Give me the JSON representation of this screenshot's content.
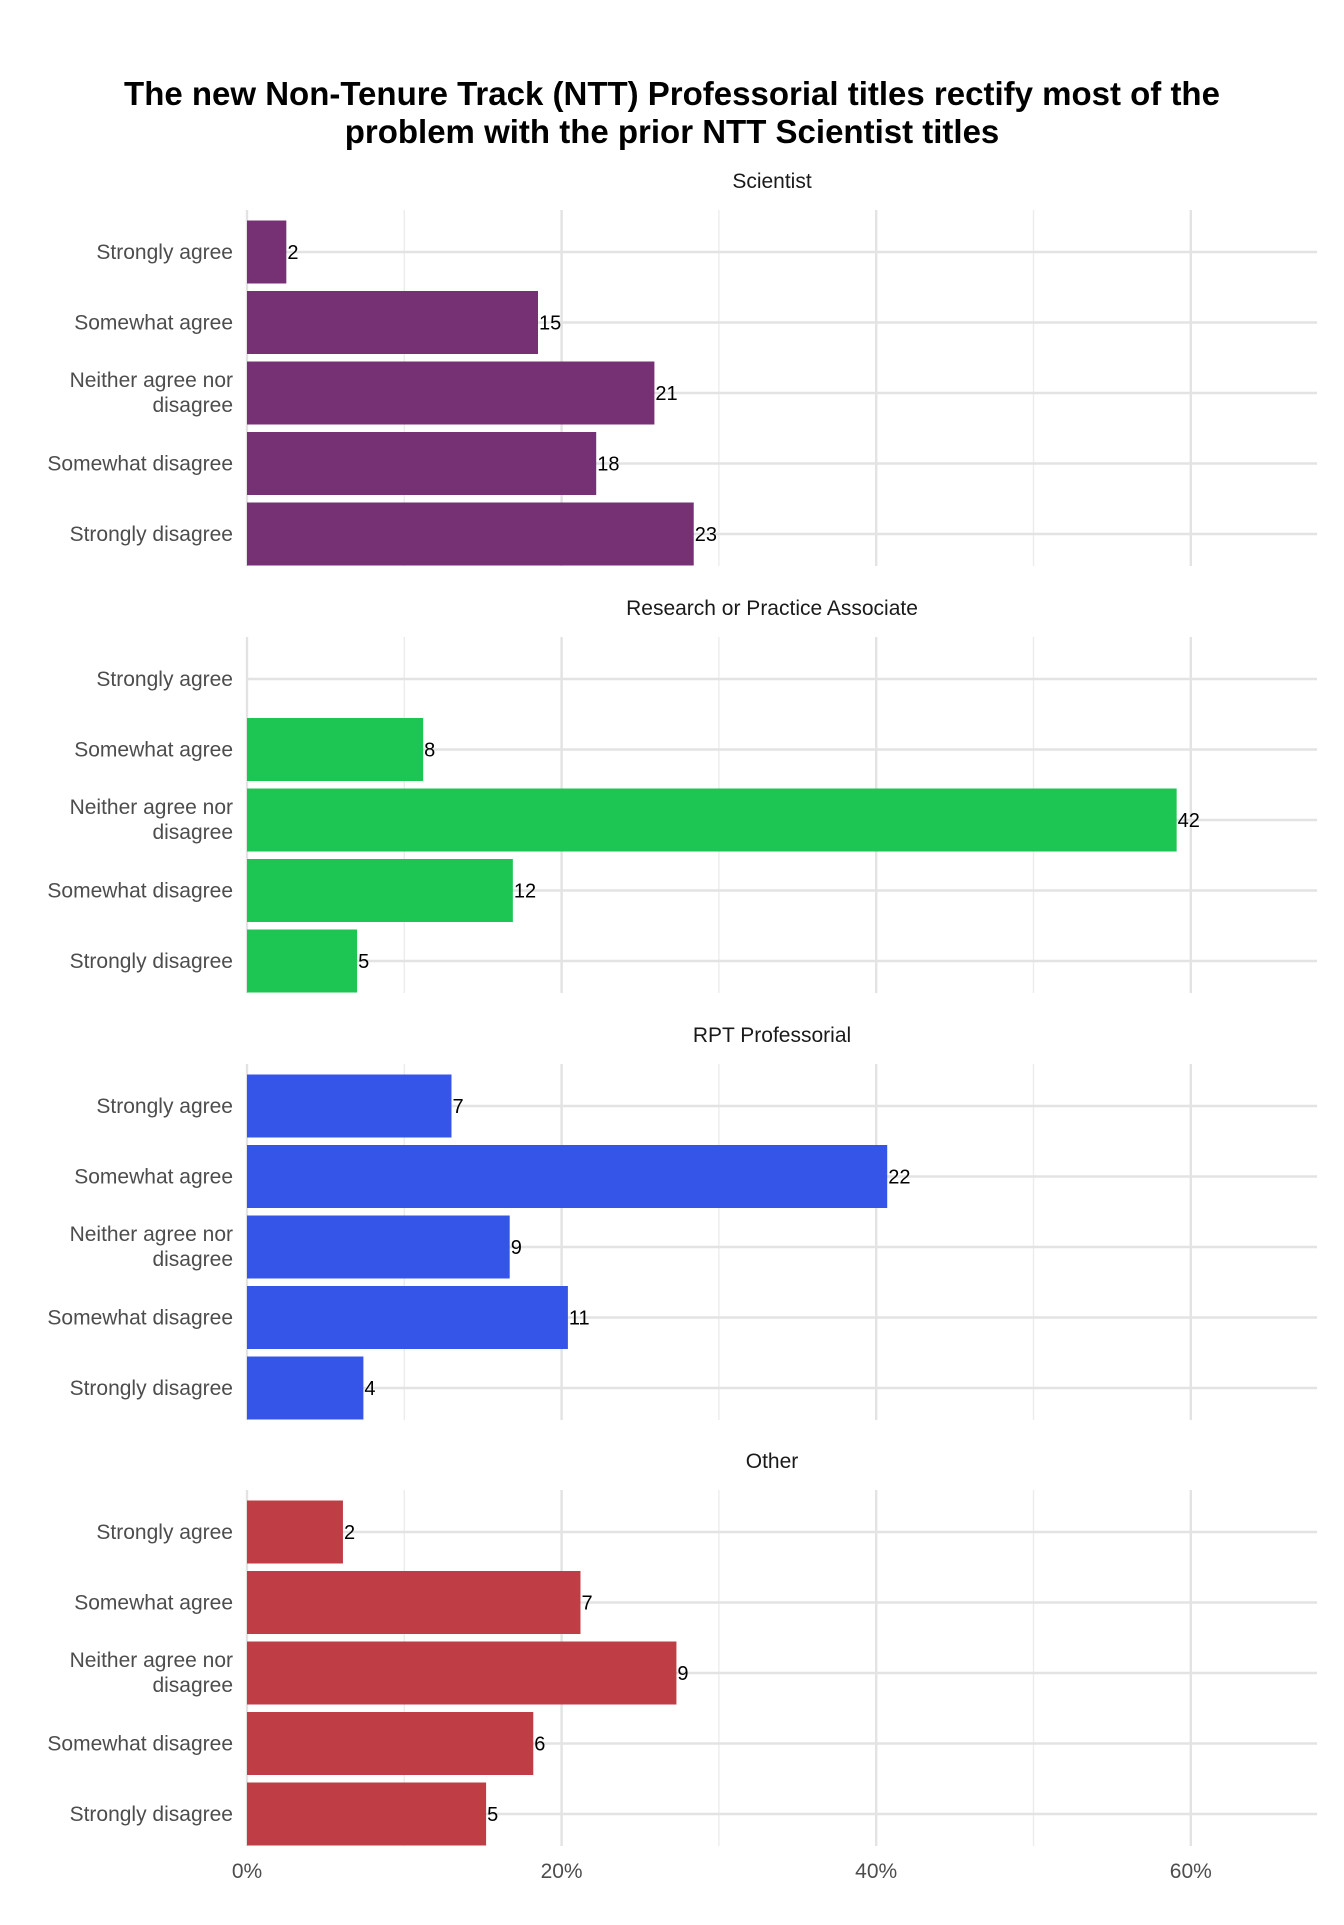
{
  "chart_data": {
    "type": "bar",
    "orientation": "horizontal",
    "title": "The new Non-Tenure Track (NTT) Professorial titles rectify most of the problem with the prior NTT Scientist titles",
    "title_lines": [
      "The new Non-Tenure Track (NTT) Professorial titles rectify most of the",
      "problem with the prior NTT Scientist titles"
    ],
    "categories": [
      "Strongly agree",
      "Somewhat agree",
      "Neither agree nor disagree",
      "Somewhat disagree",
      "Strongly disagree"
    ],
    "category_lines": [
      [
        "Strongly agree"
      ],
      [
        "Somewhat agree"
      ],
      [
        "Neither agree nor",
        "disagree"
      ],
      [
        "Somewhat disagree"
      ],
      [
        "Strongly disagree"
      ]
    ],
    "x_ticks": [
      {
        "value": 0,
        "label": "0%"
      },
      {
        "value": 20,
        "label": "20%"
      },
      {
        "value": 40,
        "label": "40%"
      },
      {
        "value": 60,
        "label": "60%"
      }
    ],
    "x_minor_ticks": [
      10,
      30,
      50
    ],
    "xlim": [
      0,
      68
    ],
    "x_unit": "percent of respondents",
    "label_meaning": "count of respondents",
    "grid": true,
    "legend": "none",
    "panels": [
      {
        "name": "Scientist",
        "color": "#763174",
        "counts": [
          2,
          15,
          21,
          18,
          23
        ],
        "percent": [
          2.5,
          18.5,
          25.9,
          22.2,
          28.4
        ]
      },
      {
        "name": "Research or Practice Associate",
        "color": "#1dc553",
        "counts": [
          null,
          8,
          42,
          12,
          5
        ],
        "percent": [
          null,
          11.2,
          59.1,
          16.9,
          7.0
        ]
      },
      {
        "name": "RPT Professorial",
        "color": "#3455e8",
        "counts": [
          7,
          22,
          9,
          11,
          4
        ],
        "percent": [
          13.0,
          40.7,
          16.7,
          20.4,
          7.4
        ]
      },
      {
        "name": "Other",
        "color": "#bf3e45",
        "counts": [
          2,
          7,
          9,
          6,
          5
        ],
        "percent": [
          6.1,
          21.2,
          27.3,
          18.2,
          15.2
        ]
      }
    ]
  }
}
